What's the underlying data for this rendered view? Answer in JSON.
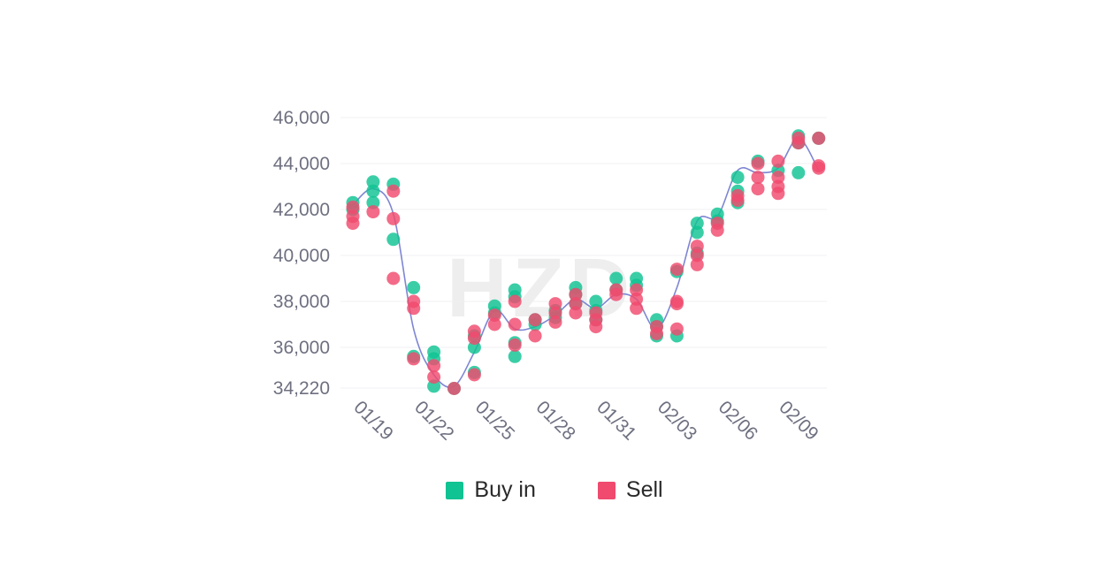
{
  "watermark": "HZD",
  "colors": {
    "buy": "#10c392",
    "sell": "#f04a6e",
    "line": "#7e86d3",
    "grid": "#f0f0f4",
    "text": "#6e7080"
  },
  "chart_data": {
    "type": "scatter",
    "x_ticks": [
      "01/19",
      "01/22",
      "01/25",
      "01/28",
      "01/31",
      "02/03",
      "02/06",
      "02/09"
    ],
    "y_ticks": [
      "34,220",
      "36,000",
      "38,000",
      "40,000",
      "42,000",
      "44,000",
      "46,000"
    ],
    "ylim": [
      34220,
      46000
    ],
    "grid": true,
    "legend_position": "bottom",
    "series": [
      {
        "name": "Buy in",
        "points": [
          [
            "01/19",
            42300
          ],
          [
            "01/19",
            42000
          ],
          [
            "01/20",
            43200
          ],
          [
            "01/20",
            42800
          ],
          [
            "01/20",
            42300
          ],
          [
            "01/21",
            43100
          ],
          [
            "01/21",
            40700
          ],
          [
            "01/22",
            38600
          ],
          [
            "01/22",
            35600
          ],
          [
            "01/23",
            35800
          ],
          [
            "01/23",
            35500
          ],
          [
            "01/23",
            34300
          ],
          [
            "01/24",
            34200
          ],
          [
            "01/25",
            36000
          ],
          [
            "01/25",
            34900
          ],
          [
            "01/25",
            36500
          ],
          [
            "01/26",
            37800
          ],
          [
            "01/26",
            37500
          ],
          [
            "01/27",
            38500
          ],
          [
            "01/27",
            38200
          ],
          [
            "01/27",
            36200
          ],
          [
            "01/27",
            35600
          ],
          [
            "01/28",
            37000
          ],
          [
            "01/28",
            37200
          ],
          [
            "01/29",
            37600
          ],
          [
            "01/29",
            37300
          ],
          [
            "01/30",
            38600
          ],
          [
            "01/30",
            38300
          ],
          [
            "01/30",
            37900
          ],
          [
            "01/31",
            38000
          ],
          [
            "01/31",
            37600
          ],
          [
            "01/31",
            37200
          ],
          [
            "02/01",
            39000
          ],
          [
            "02/01",
            38500
          ],
          [
            "02/02",
            39000
          ],
          [
            "02/02",
            38700
          ],
          [
            "02/03",
            37200
          ],
          [
            "02/03",
            36900
          ],
          [
            "02/03",
            36500
          ],
          [
            "02/04",
            36500
          ],
          [
            "02/04",
            39300
          ],
          [
            "02/05",
            41400
          ],
          [
            "02/05",
            41000
          ],
          [
            "02/05",
            40100
          ],
          [
            "02/06",
            41800
          ],
          [
            "02/06",
            41500
          ],
          [
            "02/07",
            43400
          ],
          [
            "02/07",
            42800
          ],
          [
            "02/07",
            42300
          ],
          [
            "02/08",
            44100
          ],
          [
            "02/09",
            43700
          ],
          [
            "02/10",
            45200
          ],
          [
            "02/10",
            44900
          ],
          [
            "02/10",
            43600
          ],
          [
            "02/11",
            45100
          ]
        ]
      },
      {
        "name": "Sell",
        "points": [
          [
            "01/19",
            42100
          ],
          [
            "01/19",
            41700
          ],
          [
            "01/19",
            41400
          ],
          [
            "01/20",
            41900
          ],
          [
            "01/21",
            42800
          ],
          [
            "01/21",
            41600
          ],
          [
            "01/21",
            39000
          ],
          [
            "01/22",
            38000
          ],
          [
            "01/22",
            37700
          ],
          [
            "01/22",
            35500
          ],
          [
            "01/23",
            35200
          ],
          [
            "01/23",
            34700
          ],
          [
            "01/24",
            34200
          ],
          [
            "01/25",
            36700
          ],
          [
            "01/25",
            36400
          ],
          [
            "01/25",
            34800
          ],
          [
            "01/26",
            37400
          ],
          [
            "01/26",
            37000
          ],
          [
            "01/27",
            38000
          ],
          [
            "01/27",
            37000
          ],
          [
            "01/27",
            36100
          ],
          [
            "01/28",
            37200
          ],
          [
            "01/28",
            36500
          ],
          [
            "01/29",
            37900
          ],
          [
            "01/29",
            37500
          ],
          [
            "01/29",
            37100
          ],
          [
            "01/30",
            38300
          ],
          [
            "01/30",
            37900
          ],
          [
            "01/30",
            37500
          ],
          [
            "01/31",
            37500
          ],
          [
            "01/31",
            37200
          ],
          [
            "01/31",
            36900
          ],
          [
            "02/01",
            38500
          ],
          [
            "02/01",
            38300
          ],
          [
            "02/02",
            38500
          ],
          [
            "02/02",
            38100
          ],
          [
            "02/02",
            37700
          ],
          [
            "02/03",
            36900
          ],
          [
            "02/03",
            36600
          ],
          [
            "02/04",
            39400
          ],
          [
            "02/04",
            38000
          ],
          [
            "02/04",
            37900
          ],
          [
            "02/04",
            36800
          ],
          [
            "02/05",
            40400
          ],
          [
            "02/05",
            40000
          ],
          [
            "02/05",
            39600
          ],
          [
            "02/06",
            41400
          ],
          [
            "02/06",
            41100
          ],
          [
            "02/07",
            42600
          ],
          [
            "02/07",
            42400
          ],
          [
            "02/08",
            44000
          ],
          [
            "02/08",
            43400
          ],
          [
            "02/08",
            42900
          ],
          [
            "02/09",
            44100
          ],
          [
            "02/09",
            43400
          ],
          [
            "02/09",
            43000
          ],
          [
            "02/09",
            42700
          ],
          [
            "02/10",
            45100
          ],
          [
            "02/10",
            44900
          ],
          [
            "02/11",
            45100
          ],
          [
            "02/11",
            43900
          ],
          [
            "02/11",
            43800
          ]
        ]
      }
    ],
    "trend_line": [
      [
        "01/19",
        42200
      ],
      [
        "01/20",
        42900
      ],
      [
        "01/21",
        41800
      ],
      [
        "01/22",
        36800
      ],
      [
        "01/23",
        34800
      ],
      [
        "01/24",
        34300
      ],
      [
        "01/25",
        35800
      ],
      [
        "01/26",
        37600
      ],
      [
        "01/27",
        36800
      ],
      [
        "01/28",
        36900
      ],
      [
        "01/29",
        37400
      ],
      [
        "01/30",
        38100
      ],
      [
        "01/31",
        37700
      ],
      [
        "02/01",
        38300
      ],
      [
        "02/02",
        38100
      ],
      [
        "02/03",
        36800
      ],
      [
        "02/04",
        38600
      ],
      [
        "02/05",
        41500
      ],
      [
        "02/06",
        41700
      ],
      [
        "02/07",
        43700
      ],
      [
        "02/08",
        43600
      ],
      [
        "02/09",
        43800
      ],
      [
        "02/10",
        45100
      ],
      [
        "02/11",
        43700
      ]
    ]
  }
}
